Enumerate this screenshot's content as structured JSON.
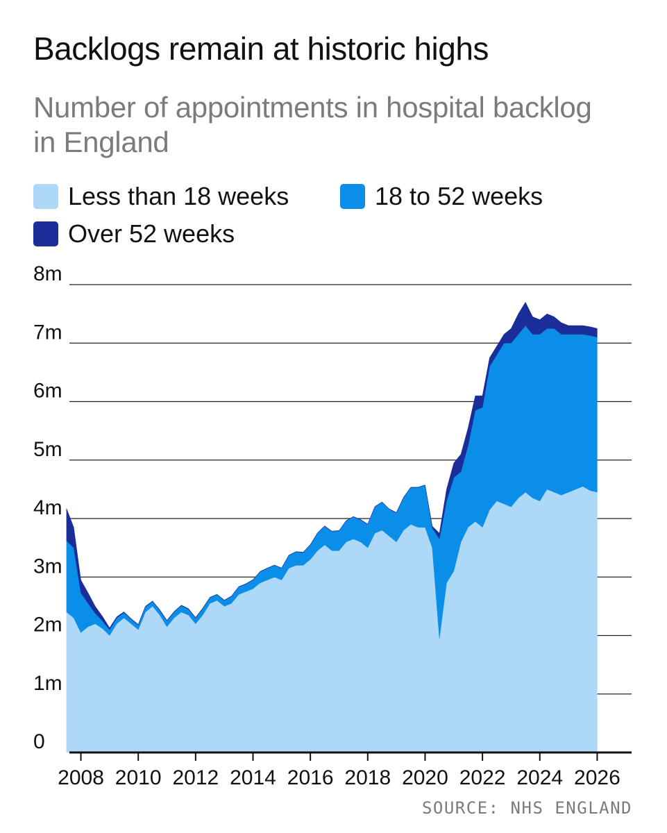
{
  "chart_data": {
    "type": "area",
    "stacked": true,
    "title": "Backlogs remain at historic highs",
    "subtitle": "Number of appointments in hospital backlog in England",
    "source": "SOURCE: NHS ENGLAND",
    "legend_position": "top-left",
    "grid": "horizontal",
    "ylim": [
      0,
      8000000
    ],
    "xlim": [
      2007.6,
      2027.2
    ],
    "y_ticks": [
      {
        "value": 0,
        "label": "0"
      },
      {
        "value": 1000000,
        "label": "1m"
      },
      {
        "value": 2000000,
        "label": "2m"
      },
      {
        "value": 3000000,
        "label": "3m"
      },
      {
        "value": 4000000,
        "label": "4m"
      },
      {
        "value": 5000000,
        "label": "5m"
      },
      {
        "value": 6000000,
        "label": "6m"
      },
      {
        "value": 7000000,
        "label": "7m"
      },
      {
        "value": 8000000,
        "label": "8m"
      }
    ],
    "x_ticks": [
      {
        "value": 2008,
        "label": "2008"
      },
      {
        "value": 2010,
        "label": "2010"
      },
      {
        "value": 2012,
        "label": "2012"
      },
      {
        "value": 2014,
        "label": "2014"
      },
      {
        "value": 2016,
        "label": "2016"
      },
      {
        "value": 2018,
        "label": "2018"
      },
      {
        "value": 2020,
        "label": "2020"
      },
      {
        "value": 2022,
        "label": "2022"
      },
      {
        "value": 2024,
        "label": "2024"
      },
      {
        "value": 2026,
        "label": "2026"
      }
    ],
    "x": [
      2007.5,
      2007.75,
      2008.0,
      2008.25,
      2008.5,
      2008.75,
      2009.0,
      2009.25,
      2009.5,
      2009.75,
      2010.0,
      2010.25,
      2010.5,
      2010.75,
      2011.0,
      2011.25,
      2011.5,
      2011.75,
      2012.0,
      2012.25,
      2012.5,
      2012.75,
      2013.0,
      2013.25,
      2013.5,
      2013.75,
      2014.0,
      2014.25,
      2014.5,
      2014.75,
      2015.0,
      2015.25,
      2015.5,
      2015.75,
      2016.0,
      2016.25,
      2016.5,
      2016.75,
      2017.0,
      2017.25,
      2017.5,
      2017.75,
      2018.0,
      2018.25,
      2018.5,
      2018.75,
      2019.0,
      2019.25,
      2019.5,
      2019.75,
      2020.0,
      2020.25,
      2020.5,
      2020.75,
      2021.0,
      2021.25,
      2021.5,
      2021.75,
      2022.0,
      2022.25,
      2022.5,
      2022.75,
      2023.0,
      2023.25,
      2023.5,
      2023.75,
      2024.0,
      2024.25,
      2024.5,
      2024.75,
      2025.0,
      2025.25,
      2025.5,
      2025.75,
      2026.0
    ],
    "series": [
      {
        "name": "Less than 18 weeks",
        "color": "#aed8f8",
        "values": [
          2400000,
          2300000,
          2050000,
          2150000,
          2200000,
          2120000,
          2000000,
          2200000,
          2300000,
          2200000,
          2100000,
          2400000,
          2500000,
          2350000,
          2150000,
          2300000,
          2400000,
          2350000,
          2200000,
          2350000,
          2550000,
          2600000,
          2500000,
          2550000,
          2700000,
          2750000,
          2800000,
          2900000,
          2950000,
          3000000,
          2950000,
          3150000,
          3200000,
          3200000,
          3300000,
          3450000,
          3550000,
          3450000,
          3450000,
          3600000,
          3650000,
          3600000,
          3500000,
          3750000,
          3800000,
          3700000,
          3600000,
          3800000,
          3900000,
          3850000,
          3850000,
          3500000,
          1950000,
          2900000,
          3100000,
          3600000,
          3850000,
          3950000,
          3850000,
          4150000,
          4300000,
          4250000,
          4200000,
          4350000,
          4450000,
          4350000,
          4300000,
          4500000,
          4450000,
          4400000,
          4450000,
          4500000,
          4550000,
          4480000,
          4450000
        ]
      },
      {
        "name": "18 to 52 weeks",
        "color": "#0a8ee8",
        "values": [
          1220000,
          1200000,
          680000,
          400000,
          180000,
          130000,
          100000,
          100000,
          90000,
          80000,
          80000,
          90000,
          80000,
          80000,
          100000,
          100000,
          110000,
          100000,
          100000,
          110000,
          100000,
          100000,
          100000,
          120000,
          130000,
          130000,
          150000,
          190000,
          200000,
          200000,
          200000,
          220000,
          230000,
          220000,
          250000,
          300000,
          320000,
          330000,
          340000,
          360000,
          380000,
          380000,
          400000,
          450000,
          480000,
          460000,
          500000,
          560000,
          630000,
          680000,
          720000,
          340000,
          1700000,
          1400000,
          1600000,
          1200000,
          1400000,
          1900000,
          2050000,
          2450000,
          2500000,
          2750000,
          2800000,
          2800000,
          2850000,
          2800000,
          2850000,
          2750000,
          2800000,
          2750000,
          2700000,
          2650000,
          2600000,
          2650000,
          2650000
        ]
      },
      {
        "name": "Over 52 weeks",
        "color": "#1b2d99",
        "values": [
          550000,
          350000,
          220000,
          180000,
          120000,
          80000,
          30000,
          20000,
          15000,
          10000,
          10000,
          10000,
          10000,
          10000,
          10000,
          10000,
          10000,
          10000,
          10000,
          10000,
          5000,
          5000,
          5000,
          5000,
          5000,
          5000,
          5000,
          5000,
          5000,
          5000,
          5000,
          5000,
          5000,
          5000,
          5000,
          5000,
          5000,
          5000,
          5000,
          5000,
          5000,
          5000,
          5000,
          5000,
          5000,
          5000,
          5000,
          5000,
          5000,
          5000,
          5000,
          30000,
          100000,
          200000,
          250000,
          300000,
          300000,
          250000,
          200000,
          150000,
          150000,
          150000,
          250000,
          350000,
          400000,
          300000,
          250000,
          250000,
          200000,
          200000,
          150000,
          150000,
          150000,
          150000,
          150000
        ]
      }
    ]
  }
}
